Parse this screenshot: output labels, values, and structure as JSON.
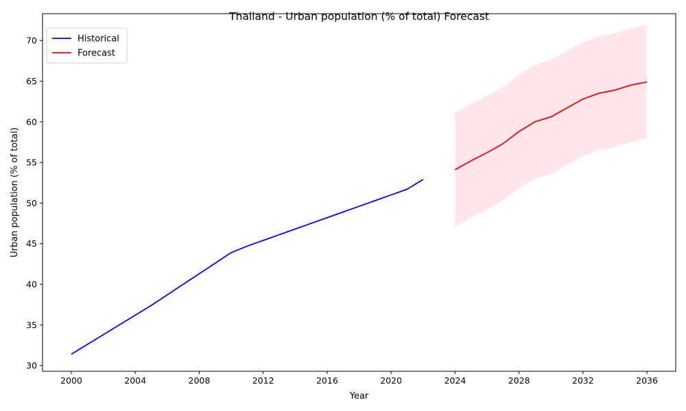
{
  "chart_data": {
    "type": "line",
    "title": "Thailand - Urban population (% of total) Forecast",
    "xlabel": "Year",
    "ylabel": "Urban population (% of total)",
    "xlim": [
      1998.2,
      2037.8
    ],
    "ylim": [
      29.3,
      73.3
    ],
    "xticks": [
      2000,
      2004,
      2008,
      2012,
      2016,
      2020,
      2024,
      2028,
      2032,
      2036
    ],
    "yticks": [
      30,
      35,
      40,
      45,
      50,
      55,
      60,
      65,
      70
    ],
    "grid": false,
    "legend_position": "top-left",
    "series": [
      {
        "name": "Historical",
        "color": "#0000ff",
        "x": [
          2000,
          2001,
          2002,
          2003,
          2004,
          2005,
          2006,
          2007,
          2008,
          2009,
          2010,
          2011,
          2012,
          2013,
          2014,
          2015,
          2016,
          2017,
          2018,
          2019,
          2020,
          2021,
          2022
        ],
        "y": [
          31.4,
          32.6,
          33.8,
          35.0,
          36.2,
          37.4,
          38.7,
          40.0,
          41.3,
          42.6,
          43.9,
          44.7,
          45.4,
          46.1,
          46.8,
          47.5,
          48.2,
          48.9,
          49.6,
          50.3,
          51.0,
          51.7,
          52.9
        ]
      },
      {
        "name": "Forecast",
        "color": "#ff0000",
        "x": [
          2024,
          2025,
          2026,
          2027,
          2028,
          2029,
          2030,
          2031,
          2032,
          2033,
          2034,
          2035,
          2036
        ],
        "y": [
          54.1,
          55.2,
          56.2,
          57.3,
          58.8,
          60.0,
          60.6,
          61.7,
          62.8,
          63.5,
          63.9,
          64.5,
          64.9
        ],
        "lower": [
          47.1,
          48.2,
          49.2,
          50.3,
          51.8,
          53.0,
          53.6,
          54.7,
          55.8,
          56.5,
          56.9,
          57.5,
          57.9
        ],
        "upper": [
          61.1,
          62.2,
          63.2,
          64.3,
          65.8,
          67.0,
          67.6,
          68.7,
          69.8,
          70.5,
          70.9,
          71.5,
          71.9
        ],
        "band_color": "#ffc0cb"
      }
    ]
  }
}
